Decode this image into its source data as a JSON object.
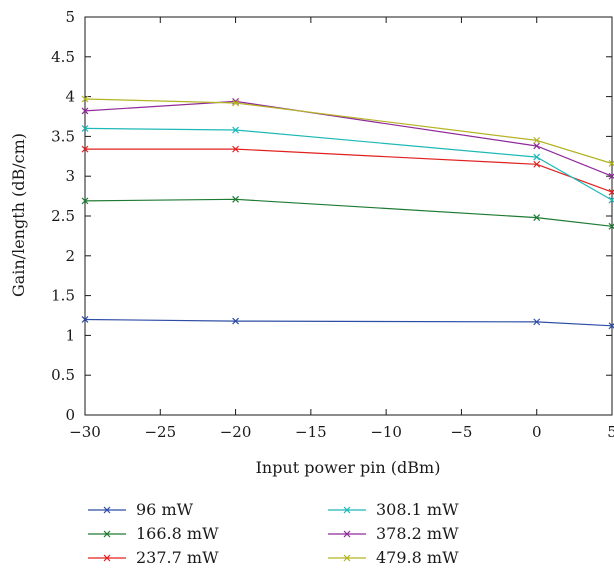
{
  "chart_data": {
    "type": "line",
    "xlabel": "Input power pin (dBm)",
    "ylabel": "Gain/length (dB/cm)",
    "xlim": [
      -30,
      5
    ],
    "ylim": [
      0,
      5
    ],
    "x_ticks": [
      -30,
      -25,
      -20,
      -15,
      -10,
      -5,
      0,
      5
    ],
    "x_tick_labels": [
      "−30",
      "−25",
      "−20",
      "−15",
      "−10",
      "−5",
      "0",
      "5"
    ],
    "y_ticks": [
      0,
      0.5,
      1,
      1.5,
      2,
      2.5,
      3,
      3.5,
      4,
      4.5,
      5
    ],
    "y_tick_labels": [
      "0",
      "0.5",
      "1",
      "1.5",
      "2",
      "2.5",
      "3",
      "3.5",
      "4",
      "4.5",
      "5"
    ],
    "grid": false,
    "legend_position": "bottom",
    "x": [
      -30,
      -20,
      0,
      5
    ],
    "series": [
      {
        "name": "96 mW",
        "color": "#2e4ea6",
        "values": [
          1.2,
          1.18,
          1.17,
          1.12
        ]
      },
      {
        "name": "166.8 mW",
        "color": "#1e7a33",
        "values": [
          2.69,
          2.71,
          2.48,
          2.37
        ]
      },
      {
        "name": "237.7 mW",
        "color": "#e0201e",
        "values": [
          3.34,
          3.34,
          3.15,
          2.8
        ]
      },
      {
        "name": "308.1 mW",
        "color": "#1fb8b8",
        "values": [
          3.6,
          3.58,
          3.24,
          2.7
        ]
      },
      {
        "name": "378.2 mW",
        "color": "#8f2a9a",
        "values": [
          3.82,
          3.94,
          3.38,
          3.0
        ]
      },
      {
        "name": "479.8 mW",
        "color": "#b3b324",
        "values": [
          3.97,
          3.92,
          3.45,
          3.16
        ]
      }
    ],
    "marker": "x-icon"
  }
}
